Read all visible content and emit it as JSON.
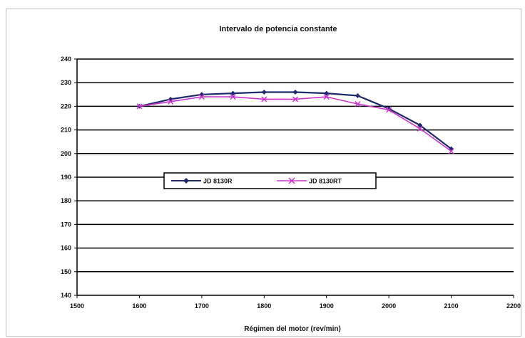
{
  "chart_data": {
    "type": "line",
    "title": "Intervalo de potencia constante",
    "xlabel": "Régimen del motor (rev/min)",
    "ylabel": "",
    "xlim": [
      1500,
      2200
    ],
    "ylim": [
      140,
      240
    ],
    "xticks": [
      1500,
      1600,
      1700,
      1800,
      1900,
      2000,
      2100,
      2200
    ],
    "yticks": [
      140,
      150,
      160,
      170,
      180,
      190,
      200,
      210,
      220,
      230,
      240
    ],
    "grid": "horizontal",
    "legend_position": "middle-left",
    "series": [
      {
        "name": "JD 8130R",
        "color": "#1f2a6b",
        "marker": "diamond",
        "x": [
          1600,
          1650,
          1700,
          1750,
          1800,
          1850,
          1900,
          1950,
          2000,
          2050,
          2100
        ],
        "y": [
          220,
          223,
          225,
          225.5,
          226,
          226,
          225.5,
          224.5,
          219,
          212,
          202
        ]
      },
      {
        "name": "JD 8130RT",
        "color": "#cc33cc",
        "marker": "cross",
        "x": [
          1600,
          1650,
          1700,
          1750,
          1800,
          1850,
          1900,
          1950,
          2000,
          2050,
          2100
        ],
        "y": [
          220,
          222,
          224,
          224,
          223,
          223,
          224,
          221,
          218.5,
          210.5,
          201
        ]
      }
    ]
  }
}
